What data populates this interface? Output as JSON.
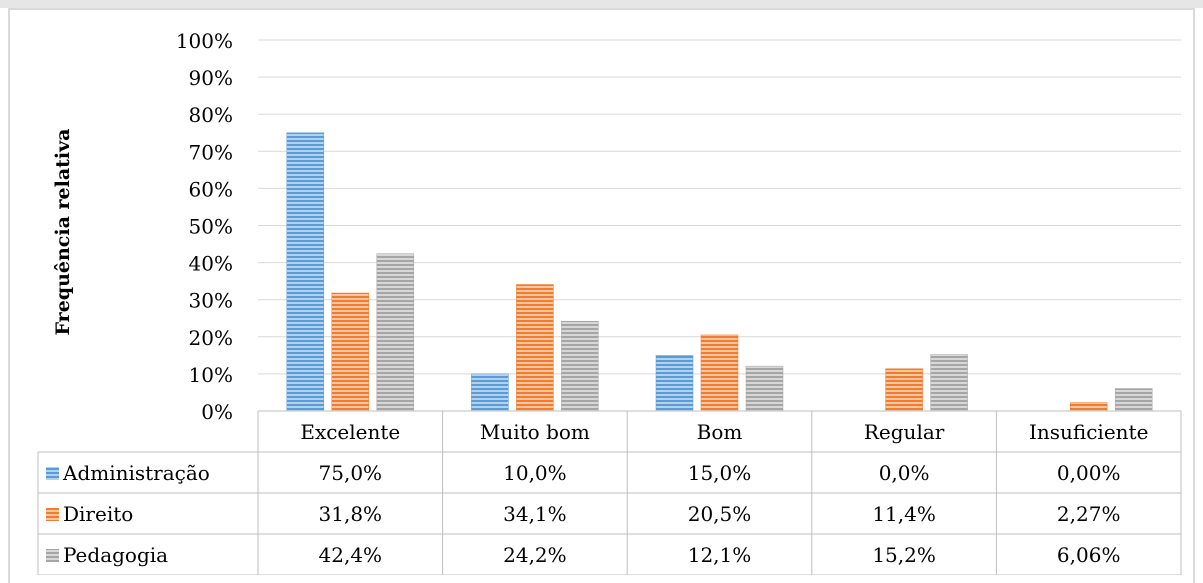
{
  "chart_data": {
    "type": "bar",
    "title": "",
    "ylabel": "Frequência relativa",
    "xlabel": "",
    "ylim": [
      0,
      100
    ],
    "yticks": [
      "0%",
      "10%",
      "20%",
      "30%",
      "40%",
      "50%",
      "60%",
      "70%",
      "80%",
      "90%",
      "100%"
    ],
    "categories": [
      "Excelente",
      "Muito bom",
      "Bom",
      "Regular",
      "Insuficiente"
    ],
    "series": [
      {
        "name": "Administração",
        "values": [
          75.0,
          10.0,
          15.0,
          0.0,
          0.0
        ],
        "labels": [
          "75,0%",
          "10,0%",
          "15,0%",
          "0,0%",
          "0,00%"
        ],
        "color": "#5b9bd5"
      },
      {
        "name": "Direito",
        "values": [
          31.8,
          34.1,
          20.5,
          11.4,
          2.27
        ],
        "labels": [
          "31,8%",
          "34,1%",
          "20,5%",
          "11,4%",
          "2,27%"
        ],
        "color": "#ed7d31"
      },
      {
        "name": "Pedagogia",
        "values": [
          42.4,
          24.2,
          12.1,
          15.2,
          6.06
        ],
        "labels": [
          "42,4%",
          "24,2%",
          "12,1%",
          "15,2%",
          "6,06%"
        ],
        "color": "#a5a5a5"
      }
    ],
    "grid": true,
    "legend": "data-table"
  }
}
